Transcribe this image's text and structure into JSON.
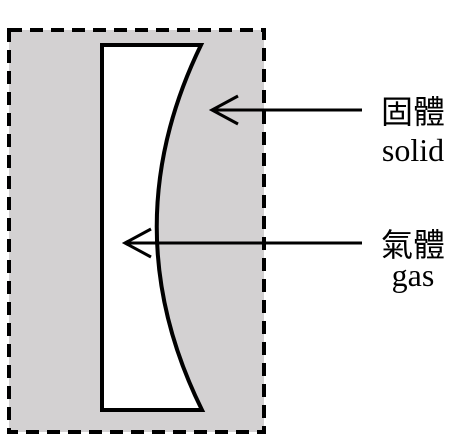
{
  "colors": {
    "solid_fill": "#d3d1d2",
    "gas_fill": "#ffffff",
    "stroke": "#000000",
    "background": "#ffffff"
  },
  "labels": {
    "solid": {
      "chinese": "固體",
      "english": "solid"
    },
    "gas": {
      "chinese": "氣體",
      "english": "gas"
    }
  }
}
